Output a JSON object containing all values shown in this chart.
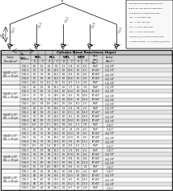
{
  "title": "Column Base Reactions (kips)",
  "sections": [
    {
      "label": "4@40' x 12'\nRLL = 20 psf",
      "rows": [
        [
          "COL 1",
          "0.6",
          "1.1",
          "0.1",
          "9.1",
          "1.3",
          "-3.4",
          "5.1",
          "-5.5"
        ],
        [
          "COL 2",
          "2.5",
          "3.7",
          "0.6",
          "21.0",
          "8.0",
          "-15.6",
          "8.0",
          "-6.1"
        ],
        [
          "COL 3",
          "2.5",
          "3.2",
          "0.6",
          "15.2",
          "8.0",
          "-9.3",
          "8.0",
          "-9.2"
        ],
        [
          "COL 4",
          "2.5",
          "5.6",
          "0.6",
          "21.0",
          "8.0",
          "-15.6",
          "8.0",
          "-9.2"
        ],
        [
          "COL 5",
          "-0.6",
          "1.1",
          "-0.1",
          "9.1",
          "5.1",
          "-5.7",
          "-1.3",
          "-2.6"
        ]
      ],
      "bp": [
        "8\"x8\"",
        "10\"x10\"",
        "10\"x10\"",
        "10\"x10\"",
        "8\"x8\""
      ],
      "ab": [
        "2 @ 3/4\"",
        "4 @ 3/4\"",
        "4 @ 3/4\"",
        "4 @ 3/4\"",
        "2 @ 3/4\""
      ]
    },
    {
      "label": "4@40' x 12'\nRLL = 30 psf",
      "rows": [
        [
          "COL 1",
          "0.6",
          "1.8",
          "0.6",
          "14.3",
          "8.1",
          "-3.7",
          "5.5",
          "-3.8"
        ],
        [
          "COL 2",
          "3.6",
          "5.6",
          "3.6",
          "33.0",
          "8.0",
          "-13.0",
          "8.0",
          "-10.6"
        ],
        [
          "COL 3",
          "3.6",
          "5.0",
          "3.6",
          "29.6",
          "8.0",
          "-8.2",
          "8.0",
          "-10.6"
        ],
        [
          "COL 4",
          "3.6",
          "5.6",
          "3.6",
          "33.4",
          "8.0",
          "-15.6",
          "8.0",
          "-10.4"
        ],
        [
          "COL 5",
          "-0.6",
          "1.8",
          "-0.6",
          "14.5",
          "5.5",
          "-5.6",
          "-8.1",
          "-2.5"
        ]
      ],
      "bp": [
        "8\"x8\"",
        "10\"x10\"",
        "10\"x10\"",
        "10\"x10\"",
        "8\"x8\""
      ],
      "ab": [
        "2 @ 3/4\"",
        "4 @ 3/4\"",
        "4 @ 3/4\"",
        "4 @ 3/4\"",
        "2 @ 3/4\""
      ]
    },
    {
      "label": "4@40' x 15'\nRLL = 40 psf",
      "rows": [
        [
          "COL 1",
          "0.8",
          "1.6",
          "5.5",
          "19.6",
          "1.3",
          "-2.4",
          "5.8",
          "-2.5"
        ],
        [
          "COL 2",
          "4.0",
          "5.6",
          "2.5",
          "44.1",
          "8.0",
          "-17.1",
          "8.0",
          "-15.0"
        ],
        [
          "COL 3",
          "3.3",
          "5.6",
          "2.5",
          "21.0",
          "8.0",
          "-9.1",
          "8.0",
          "-15.0"
        ],
        [
          "COL 4",
          "4.0",
          "5.6",
          "2.5",
          "43.9",
          "8.0",
          "-12.8",
          "8.0",
          "-15.0"
        ],
        [
          "COL 5",
          "-0.8",
          "1.6",
          "-1.5",
          "19.5",
          "5.8",
          "-5.6",
          "-1.3",
          "-3.8"
        ]
      ],
      "bp": [
        "8\"x8\"",
        "10\"x10\"",
        "10\"x10\"",
        "10\"x10\"",
        "8\"x8\""
      ],
      "ab": [
        "2 @ 3/4\"",
        "4 @ 3/4\"",
        "4 @ 3/4\"",
        "4 @ 3/4\"",
        "2 @ 1\""
      ]
    },
    {
      "label": "4@40' x 15'\nRLL = 20 psf",
      "rows": [
        [
          "COL 1",
          "0.6",
          "1.9",
          "5.6",
          "19.3",
          "2.6",
          "2.8",
          "-7.6",
          "-6.5"
        ],
        [
          "COL 2",
          "5.6",
          "3.6",
          "5.6",
          "21.0",
          "8.0",
          "-11.0",
          "8.0",
          "-9.5"
        ],
        [
          "COL 3",
          "5.4",
          "3.6",
          "5.6",
          "16.0",
          "8.0",
          "-13.0",
          "8.0",
          "-9.5"
        ],
        [
          "COL 4",
          "5.6",
          "3.6",
          "5.6",
          "21.0",
          "8.0",
          "-3.6",
          "8.0",
          "-11.1"
        ],
        [
          "COL 5",
          "-0.5",
          "1.9",
          "-3.4",
          "16.3",
          "4.1",
          "-5.9",
          "-1.6",
          "-1.1"
        ]
      ],
      "bp": [
        "8\"x8\"",
        "10\"x10\"",
        "10\"x10\"",
        "10\"x10\"",
        "8\"x8\""
      ],
      "ab": [
        "2 @ 1\"",
        "4 @ 3/4\"",
        "4 @ 3/4\"",
        "4 @ 3/4\"",
        "2 @ 1\""
      ]
    },
    {
      "label": "4@40' x 15'\nRLL = 30 psf",
      "rows": [
        [
          "COL 1",
          "2.5",
          "1.9",
          "4.8",
          "12.2",
          "3.1",
          "-2.9",
          "-8.5",
          "-6.2"
        ],
        [
          "COL 2",
          "3.8",
          "5.6",
          "0.6",
          "31.1",
          "8.0",
          "-17.8",
          "8.0",
          "-9.4"
        ],
        [
          "COL 3",
          "3.6",
          "5.6",
          "0.6",
          "28.1",
          "8.0",
          "-9.8",
          "8.0",
          "-9.4"
        ],
        [
          "COL 4",
          "3.6",
          "5.6",
          "0.6",
          "31.1",
          "8.0",
          "-8.6",
          "8.0",
          "-11.4"
        ],
        [
          "COL 5",
          "1.6",
          "1.9",
          "-4.6",
          "18.5",
          "7.6",
          "-5.8",
          "2.1",
          "2.4"
        ]
      ],
      "bp": [
        "8\"x8\"",
        "10\"x10\"",
        "10\"x10\"",
        "10\"x10\"",
        "8\"x8\""
      ],
      "ab": [
        "2 @ 1\"",
        "4 @ 3/4\"",
        "4 @ 3/4\"",
        "4 @ 3/4\"",
        "2 @ 1\""
      ]
    },
    {
      "label": "4@40' x 15'\nRLL = 40 psf",
      "rows": [
        [
          "COL 1",
          "0.6",
          "2.6",
          "5.6",
          "19.2",
          "2.6",
          "-4.8",
          "-8.5",
          "-4.2"
        ],
        [
          "COL 2",
          "4.0",
          "6.0",
          "5.6",
          "40.5",
          "8.0",
          "-12.0",
          "8.0",
          "-10.5"
        ],
        [
          "COL 3",
          "3.8",
          "6.0",
          "5.6",
          "36.5",
          "8.0",
          "-8.5",
          "8.0",
          "-10.5"
        ],
        [
          "COL 4",
          "4.0",
          "6.0",
          "5.6",
          "41.5",
          "8.0",
          "-13.2",
          "8.0",
          "-13.0"
        ],
        [
          "COL 5",
          "-0.6",
          "2.6",
          "0.6",
          "19.2",
          "7.4",
          "-6.7",
          "2.6",
          "-2.8"
        ]
      ],
      "bp": [
        "8\"x8\"",
        "10\"x10\"",
        "10\"x10\"",
        "10\"x10\"",
        "8\"x8\""
      ],
      "ab": [
        "2 @ 1\"",
        "4 @ 3/4\"",
        "4 @ 3/4\"",
        "4 @ 3/4\"",
        "2 @ 1\""
      ]
    }
  ],
  "note_lines": [
    "Reactions are presented below by table",
    "to be used in any required combination.",
    "Arrow actions are defined as follows:",
    "  RDL =>  Roof Dead Load",
    "  RLL =>  Roof Live Load",
    "  WTL =>  Wind Load to Left",
    "  WTR =>  Wind Load to Right",
    "* Mortdave @ Clear Width x Eave-Height",
    "** (Width x Length)   *** # of Bolts @ (Bolt Dia)"
  ],
  "bg_color": "#ffffff"
}
